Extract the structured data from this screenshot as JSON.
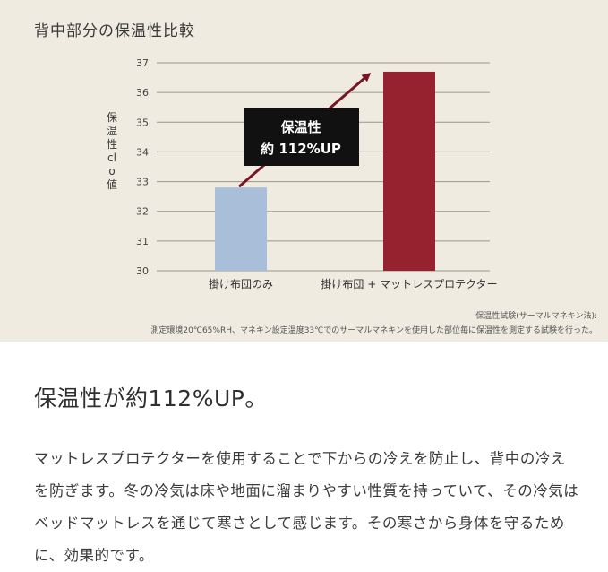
{
  "chart_data": {
    "type": "bar",
    "title": "背中部分の保温性比較",
    "ylabel": "保温性clo値",
    "categories": [
      "掛け布団のみ",
      "掛け布団 + マットレスプロテクター"
    ],
    "values": [
      32.8,
      36.7
    ],
    "ylim": [
      30,
      37
    ],
    "yticks": [
      "30",
      "31",
      "32",
      "33",
      "34",
      "35",
      "36",
      "37"
    ],
    "grid": true,
    "colors": [
      "#a8bed9",
      "#97222f"
    ],
    "callout": {
      "line1": "保温性",
      "line2": "約 112%UP"
    },
    "notes": [
      "保温性試験(サーマルマネキン法):",
      "測定環境20℃65%RH、マネキン設定温度33℃でのサーマルマネキンを使用した部位毎に保温性を測定する試験を行った。"
    ]
  },
  "headline": "保温性が約112%UP。",
  "body": "マットレスプロテクターを使用することで下からの冷えを防止し、背中の冷えを防ぎます。冬の冷気は床や地面に溜まりやすい性質を持っていて、その冷気はベッドマットレスを通じて寒さとして感じます。その寒さから身体を守るために、効果的です。"
}
